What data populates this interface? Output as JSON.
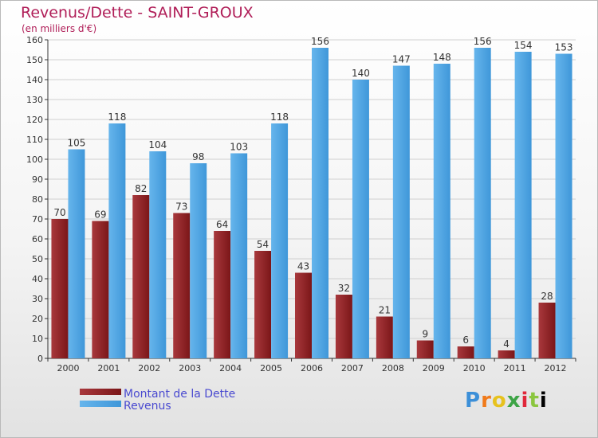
{
  "header": {
    "title": "Revenus/Dette - SAINT-GROUX",
    "subtitle": "(en milliers d'€)"
  },
  "logo": {
    "text": "Proxiti",
    "letters": [
      "P",
      "r",
      "o",
      "x",
      "i",
      "t",
      "i"
    ]
  },
  "colors": {
    "debt": "#7b1618",
    "debt_light": "#a8383c",
    "revenue": "#3f97d9",
    "revenue_light": "#66b5ec",
    "axis": "#333333",
    "grid": "#d0d0d0"
  },
  "chart_data": {
    "type": "bar",
    "title": "Revenus/Dette - SAINT-GROUX",
    "ylabel": "(en milliers d'€)",
    "xlabel": "",
    "ylim": [
      0,
      160
    ],
    "yticks": [
      0,
      10,
      20,
      30,
      40,
      50,
      60,
      70,
      80,
      90,
      100,
      110,
      120,
      130,
      140,
      150,
      160
    ],
    "grid": true,
    "legend": "bottom-left",
    "categories": [
      "2000",
      "2001",
      "2002",
      "2003",
      "2004",
      "2005",
      "2006",
      "2007",
      "2008",
      "2009",
      "2010",
      "2011",
      "2012"
    ],
    "series": [
      {
        "name": "Montant de la Dette",
        "values": [
          70,
          69,
          82,
          73,
          64,
          54,
          43,
          32,
          21,
          9,
          6,
          4,
          28
        ]
      },
      {
        "name": "Revenus",
        "values": [
          105,
          118,
          104,
          98,
          103,
          118,
          156,
          140,
          147,
          148,
          156,
          154,
          153
        ]
      }
    ]
  }
}
